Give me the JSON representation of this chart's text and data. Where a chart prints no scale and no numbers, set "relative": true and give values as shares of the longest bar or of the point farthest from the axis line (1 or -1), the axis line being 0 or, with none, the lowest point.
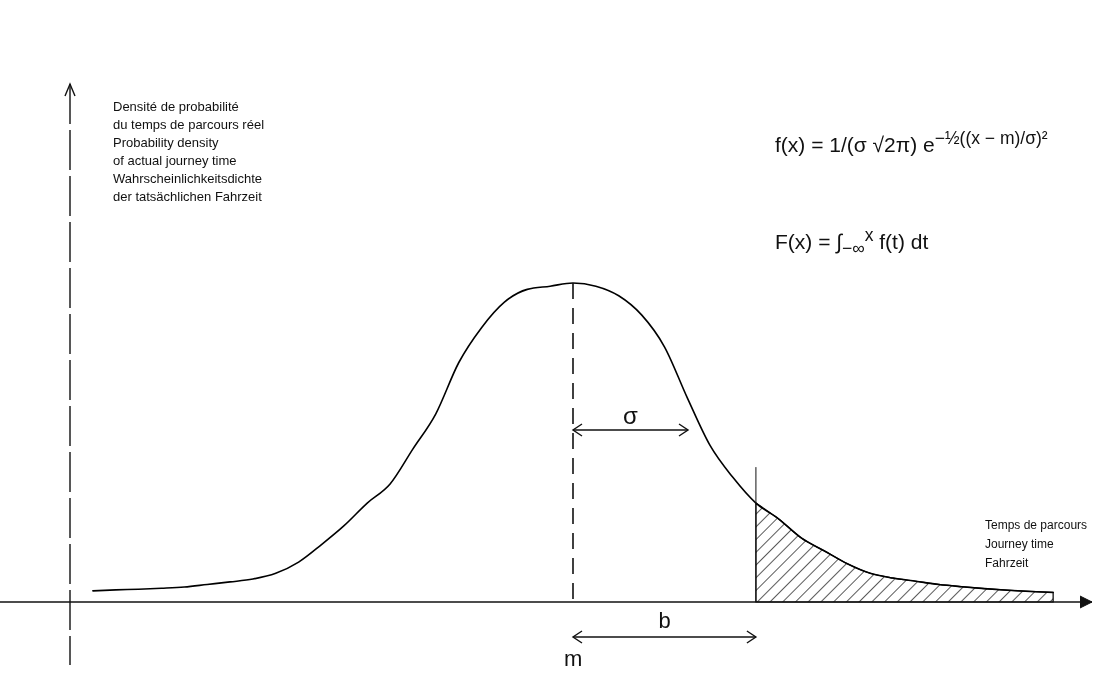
{
  "chart_data": {
    "type": "line",
    "relative": true,
    "xlabel": "Temps de parcours\nJourney time\nFahrzeit",
    "annotations": [
      "f(x) = 1/(σ √2π) e$^{−½((x − m)/σ)²}$",
      "F(x) = ∫$_{−∞}$$^{x}$ f(t) dt",
      "σ",
      "b",
      "m",
      "Densité de probabilité\ndu temps de parcours réel\nProbability density\nof actual journey time\nWahrscheinlichkeitsdichte\nder tatsächlichen Fahrzeit"
    ],
    "categories": [
      null,
      null,
      null,
      null,
      null,
      null,
      null,
      null,
      null,
      null,
      null,
      null,
      null,
      null,
      null,
      null,
      null,
      null,
      null,
      null,
      null,
      null,
      null,
      null,
      null,
      null,
      null,
      null,
      null,
      null,
      null,
      null,
      null,
      null,
      null,
      null,
      null,
      null,
      null,
      null,
      null,
      null,
      null
    ],
    "series": [
      {
        "color": "#000000",
        "values": [
          0.035,
          0.038,
          0.04,
          0.043,
          0.047,
          0.055,
          0.063,
          0.072,
          0.09,
          0.125,
          0.18,
          0.24,
          0.31,
          0.37,
          0.48,
          0.59,
          0.75,
          0.86,
          0.94,
          0.98,
          0.99,
          1.0,
          0.99,
          0.96,
          0.9,
          0.8,
          0.64,
          0.49,
          0.39,
          0.31,
          0.26,
          0.2,
          0.16,
          0.12,
          0.09,
          0.075,
          0.065,
          0.055,
          0.048,
          0.042,
          0.037,
          0.033,
          0.03
        ]
      },
      {
        "type": "area",
        "color": "#000000",
        "values": [
          null,
          null,
          null,
          null,
          null,
          null,
          null,
          null,
          null,
          null,
          null,
          null,
          null,
          null,
          null,
          null,
          null,
          null,
          null,
          null,
          null,
          null,
          null,
          null,
          null,
          null,
          null,
          null,
          null,
          0.31,
          0.26,
          0.2,
          0.16,
          0.12,
          0.09,
          0.075,
          0.065,
          0.055,
          0.048,
          0.042,
          0.037,
          0.033,
          0.03
        ]
      }
    ],
    "grid": false
  }
}
